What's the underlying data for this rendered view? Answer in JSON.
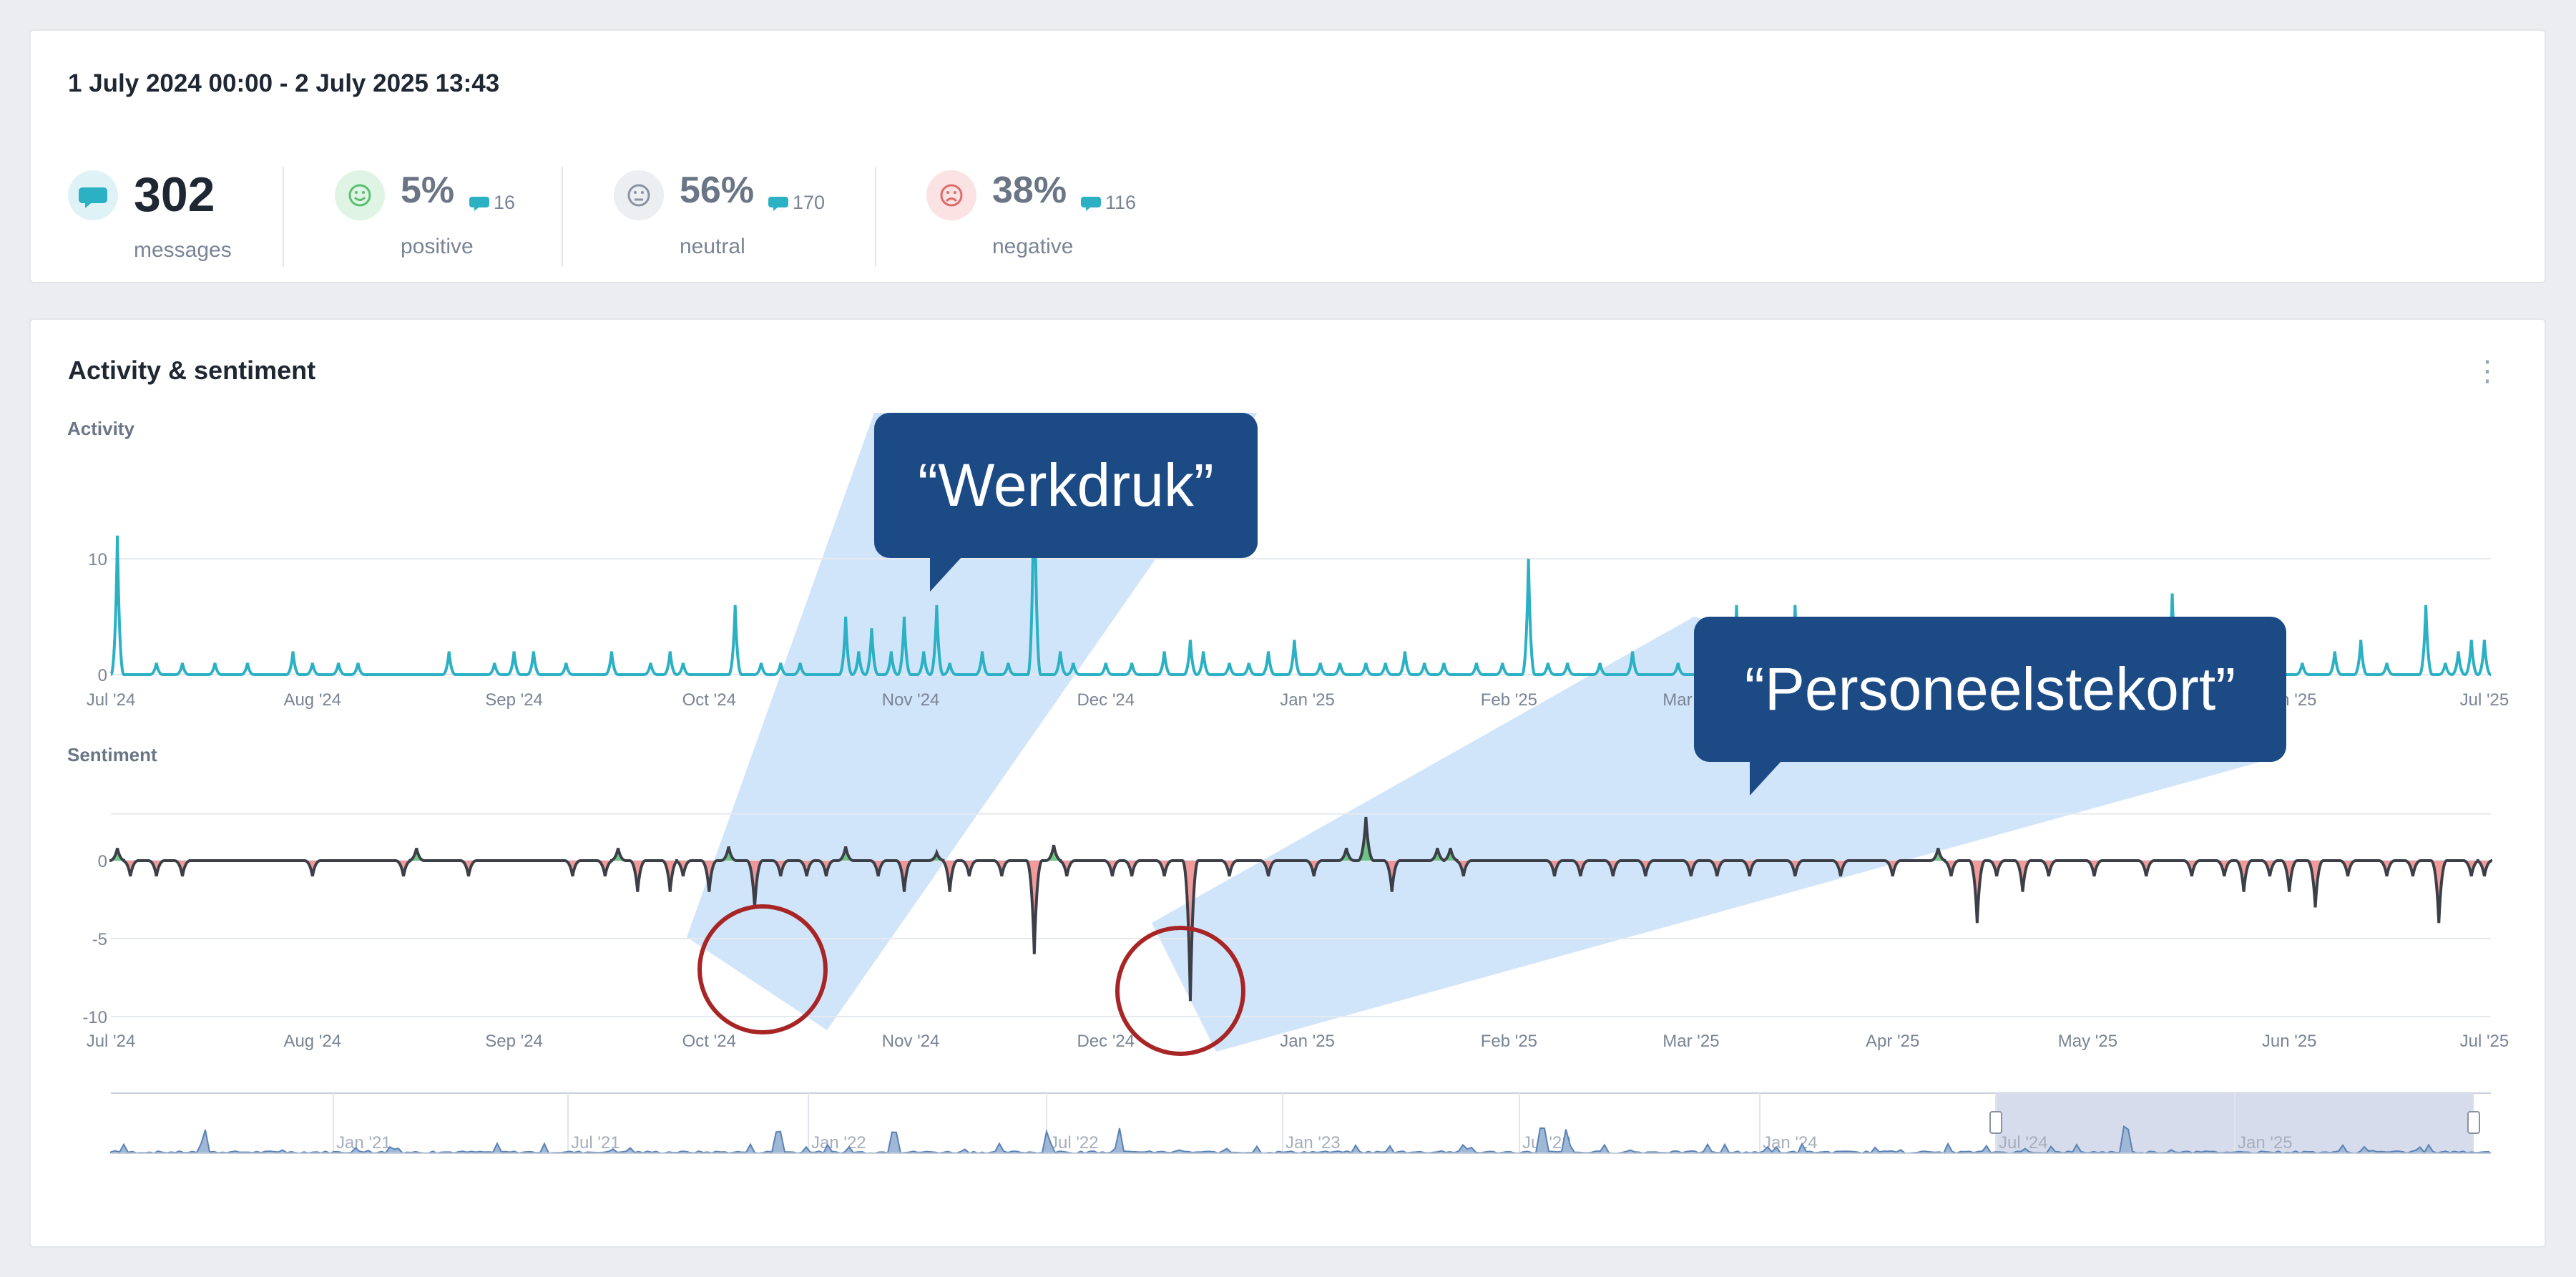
{
  "summary": {
    "range": "1 July 2024 00:00 - 2 July 2025 13:43",
    "total": {
      "value": "302",
      "label": "messages"
    },
    "positive": {
      "percent": "5%",
      "count": "16",
      "label": "positive"
    },
    "neutral": {
      "percent": "56%",
      "count": "170",
      "label": "neutral"
    },
    "negative": {
      "percent": "38%",
      "count": "116",
      "label": "negative"
    }
  },
  "panel": {
    "title": "Activity & sentiment",
    "menu_icon": "kebab-menu-icon"
  },
  "callouts": {
    "werkdruk": "“Werkdruk”",
    "personeelstekort": "“Personeelstekort”"
  },
  "colors": {
    "activity_line": "#2bb0c4",
    "callout_bg": "#1c4a85",
    "highlight": "#cfe4fa",
    "circle": "#a82525",
    "positive": "#5bbf72",
    "negative": "#f08a8a",
    "navigator_fill": "#d6dcec"
  },
  "chart_data": [
    {
      "type": "line",
      "title": "Activity",
      "x_range": [
        "2024-07-01",
        "2025-07-02"
      ],
      "xticks": [
        "Jul '24",
        "Aug '24",
        "Sep '24",
        "Oct '24",
        "Nov '24",
        "Dec '24",
        "Jan '25",
        "Feb '25",
        "Mar '25",
        "Apr '25",
        "May '25",
        "Jun '25",
        "Jul '25"
      ],
      "yticks": [
        "0",
        "10"
      ],
      "ylim": [
        0,
        12
      ],
      "series": [
        {
          "peaks": [
            [
              "2024-07-02",
              12
            ],
            [
              "2024-07-08",
              1
            ],
            [
              "2024-07-12",
              1
            ],
            [
              "2024-07-17",
              1
            ],
            [
              "2024-07-22",
              1
            ],
            [
              "2024-07-29",
              2
            ],
            [
              "2024-08-01",
              1
            ],
            [
              "2024-08-05",
              1
            ],
            [
              "2024-08-08",
              1
            ],
            [
              "2024-08-22",
              2
            ],
            [
              "2024-08-29",
              1
            ],
            [
              "2024-09-01",
              2
            ],
            [
              "2024-09-04",
              2
            ],
            [
              "2024-09-09",
              1
            ],
            [
              "2024-09-16",
              2
            ],
            [
              "2024-09-22",
              1
            ],
            [
              "2024-09-25",
              2
            ],
            [
              "2024-09-27",
              1
            ],
            [
              "2024-10-05",
              6
            ],
            [
              "2024-10-09",
              1
            ],
            [
              "2024-10-12",
              1
            ],
            [
              "2024-10-15",
              1
            ],
            [
              "2024-10-22",
              5
            ],
            [
              "2024-10-24",
              2
            ],
            [
              "2024-10-26",
              4
            ],
            [
              "2024-10-29",
              2
            ],
            [
              "2024-10-31",
              5
            ],
            [
              "2024-11-03",
              2
            ],
            [
              "2024-11-05",
              6
            ],
            [
              "2024-11-07",
              1
            ],
            [
              "2024-11-12",
              2
            ],
            [
              "2024-11-16",
              1
            ],
            [
              "2024-11-20",
              19
            ],
            [
              "2024-11-24",
              2
            ],
            [
              "2024-11-26",
              1
            ],
            [
              "2024-12-01",
              1
            ],
            [
              "2024-12-05",
              1
            ],
            [
              "2024-12-10",
              2
            ],
            [
              "2024-12-14",
              3
            ],
            [
              "2024-12-16",
              2
            ],
            [
              "2024-12-20",
              1
            ],
            [
              "2024-12-23",
              1
            ],
            [
              "2024-12-26",
              2
            ],
            [
              "2024-12-30",
              3
            ],
            [
              "2025-01-03",
              1
            ],
            [
              "2025-01-06",
              1
            ],
            [
              "2025-01-10",
              1
            ],
            [
              "2025-01-13",
              1
            ],
            [
              "2025-01-16",
              2
            ],
            [
              "2025-01-19",
              1
            ],
            [
              "2025-01-22",
              1
            ],
            [
              "2025-01-27",
              1
            ],
            [
              "2025-01-31",
              1
            ],
            [
              "2025-02-04",
              10
            ],
            [
              "2025-02-07",
              1
            ],
            [
              "2025-02-10",
              1
            ],
            [
              "2025-02-15",
              1
            ],
            [
              "2025-02-20",
              2
            ],
            [
              "2025-02-27",
              1
            ],
            [
              "2025-03-03",
              1
            ],
            [
              "2025-03-05",
              1
            ],
            [
              "2025-03-08",
              6
            ],
            [
              "2025-03-17",
              6
            ],
            [
              "2025-03-27",
              3
            ],
            [
              "2025-03-31",
              1
            ],
            [
              "2025-04-03",
              2
            ],
            [
              "2025-04-08",
              1
            ],
            [
              "2025-04-14",
              2
            ],
            [
              "2025-04-18",
              1
            ],
            [
              "2025-05-14",
              7
            ],
            [
              "2025-05-20",
              2
            ],
            [
              "2025-05-25",
              1
            ],
            [
              "2025-06-03",
              1
            ],
            [
              "2025-06-08",
              2
            ],
            [
              "2025-06-12",
              3
            ],
            [
              "2025-06-16",
              1
            ],
            [
              "2025-06-22",
              6
            ],
            [
              "2025-06-25",
              1
            ],
            [
              "2025-06-27",
              2
            ],
            [
              "2025-06-29",
              3
            ],
            [
              "2025-07-01",
              3
            ]
          ]
        }
      ]
    },
    {
      "type": "area",
      "title": "Sentiment",
      "x_range": [
        "2024-07-01",
        "2025-07-02"
      ],
      "xticks": [
        "Jul '24",
        "Aug '24",
        "Sep '24",
        "Oct '24",
        "Nov '24",
        "Dec '24",
        "Jan '25",
        "Feb '25",
        "Mar '25",
        "Apr '25",
        "May '25",
        "Jun '25",
        "Jul '25"
      ],
      "yticks": [
        "0",
        "-5",
        "-10"
      ],
      "ylim": [
        -10,
        3
      ],
      "series": [
        {
          "peaks": [
            [
              "2024-07-02",
              0.8
            ],
            [
              "2024-07-04",
              -1
            ],
            [
              "2024-07-08",
              -1
            ],
            [
              "2024-07-12",
              -1
            ],
            [
              "2024-08-01",
              -1
            ],
            [
              "2024-08-15",
              -1
            ],
            [
              "2024-08-17",
              0.8
            ],
            [
              "2024-08-25",
              -1
            ],
            [
              "2024-09-10",
              -1
            ],
            [
              "2024-09-15",
              -1
            ],
            [
              "2024-09-17",
              0.8
            ],
            [
              "2024-09-20",
              -2
            ],
            [
              "2024-09-25",
              -2
            ],
            [
              "2024-09-27",
              -1
            ],
            [
              "2024-10-01",
              -2
            ],
            [
              "2024-10-04",
              0.9
            ],
            [
              "2024-10-08",
              -3
            ],
            [
              "2024-10-12",
              -1
            ],
            [
              "2024-10-16",
              -1
            ],
            [
              "2024-10-19",
              -1
            ],
            [
              "2024-10-22",
              0.9
            ],
            [
              "2024-10-27",
              -1
            ],
            [
              "2024-10-31",
              -2
            ],
            [
              "2024-11-05",
              0.5
            ],
            [
              "2024-11-07",
              -2
            ],
            [
              "2024-11-10",
              -1
            ],
            [
              "2024-11-15",
              -1
            ],
            [
              "2024-11-20",
              -6
            ],
            [
              "2024-11-23",
              1
            ],
            [
              "2024-11-25",
              -1
            ],
            [
              "2024-12-02",
              -1
            ],
            [
              "2024-12-05",
              -1
            ],
            [
              "2024-12-14",
              -9
            ],
            [
              "2024-12-10",
              -1
            ],
            [
              "2024-12-20",
              -1
            ],
            [
              "2024-12-26",
              -1
            ],
            [
              "2025-01-02",
              -1
            ],
            [
              "2025-01-07",
              0.8
            ],
            [
              "2025-01-10",
              2.8
            ],
            [
              "2025-01-14",
              -2
            ],
            [
              "2025-01-21",
              0.8
            ],
            [
              "2025-01-23",
              0.8
            ],
            [
              "2025-01-25",
              -1
            ],
            [
              "2025-02-08",
              -1
            ],
            [
              "2025-02-12",
              -1
            ],
            [
              "2025-02-17",
              -1
            ],
            [
              "2025-02-22",
              -1
            ],
            [
              "2025-03-01",
              -1
            ],
            [
              "2025-03-05",
              -1
            ],
            [
              "2025-03-10",
              -1
            ],
            [
              "2025-03-17",
              -1
            ],
            [
              "2025-03-24",
              -1
            ],
            [
              "2025-04-01",
              -1
            ],
            [
              "2025-04-08",
              0.8
            ],
            [
              "2025-04-10",
              -1
            ],
            [
              "2025-04-14",
              -4
            ],
            [
              "2025-04-17",
              -1
            ],
            [
              "2025-04-21",
              -2
            ],
            [
              "2025-04-25",
              -1
            ],
            [
              "2025-05-02",
              -1
            ],
            [
              "2025-05-10",
              -1
            ],
            [
              "2025-05-17",
              -1
            ],
            [
              "2025-05-22",
              -1
            ],
            [
              "2025-05-25",
              -2
            ],
            [
              "2025-05-29",
              -1
            ],
            [
              "2025-06-01",
              -2
            ],
            [
              "2025-06-05",
              -3
            ],
            [
              "2025-06-10",
              -1
            ],
            [
              "2025-06-16",
              -1
            ],
            [
              "2025-06-20",
              -1
            ],
            [
              "2025-06-24",
              -4
            ],
            [
              "2025-06-29",
              -1
            ],
            [
              "2025-07-01",
              -1
            ]
          ]
        }
      ]
    },
    {
      "type": "area",
      "title": "",
      "xticks": [
        "Jan '21",
        "Jul '21",
        "Jan '22",
        "Jul '22",
        "Jan '23",
        "Jul '23",
        "Jan '24",
        "Jul '24",
        "Jan '25"
      ],
      "selected_range": [
        "Jul '24",
        "Jul '25"
      ]
    }
  ]
}
